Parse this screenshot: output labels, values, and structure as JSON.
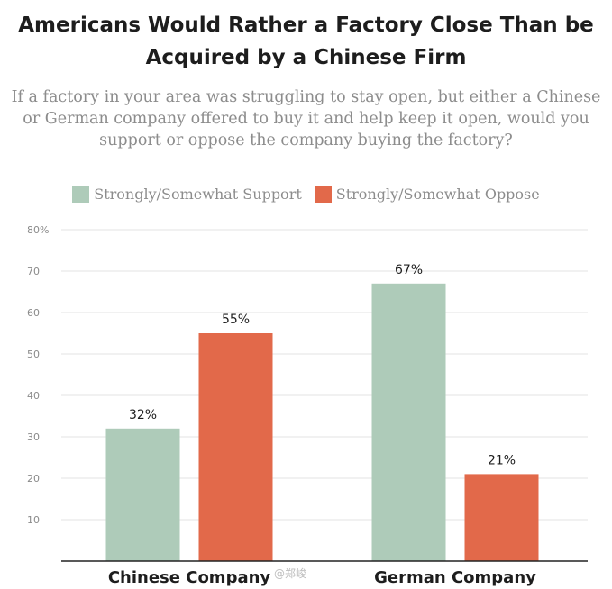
{
  "chart_data": {
    "type": "bar",
    "title": "Americans Would Rather a Factory Close Than be Acquired by a Chinese Firm",
    "subtitle": "If a factory in your area was struggling to stay open, but either a Chinese or German company offered to buy it and help keep it open, would you support or oppose the company buying the factory?",
    "categories": [
      "Chinese Company",
      "German Company"
    ],
    "series": [
      {
        "name": "Strongly/Somewhat Support",
        "values": [
          32,
          67
        ],
        "labels": [
          "32%",
          "67%"
        ],
        "color": "#aecbb9"
      },
      {
        "name": "Strongly/Somewhat Oppose",
        "values": [
          55,
          21
        ],
        "labels": [
          "55%",
          "21%"
        ],
        "color": "#e2694a"
      }
    ],
    "ylim": [
      0,
      80
    ],
    "yticks": [
      10,
      20,
      30,
      40,
      50,
      60,
      70,
      80
    ],
    "ytick_labels": [
      "10",
      "20",
      "30",
      "40",
      "50",
      "60",
      "70",
      "80%"
    ],
    "grid": true,
    "legend_position": "top-center"
  },
  "watermark": "@郑峻"
}
